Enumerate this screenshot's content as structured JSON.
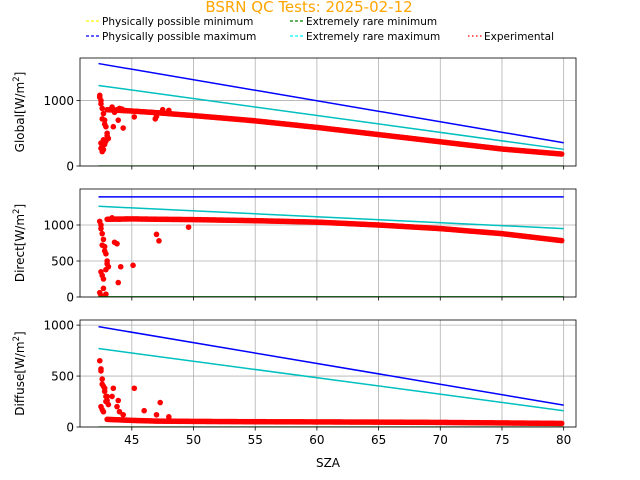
{
  "chart_data": {
    "type": "line",
    "title": "BSRN QC Tests: 2025-02-12",
    "title_color": "#ffa500",
    "xlabel": "SZA",
    "xlim": [
      40.8,
      81.0
    ],
    "xticks": [
      45,
      50,
      55,
      60,
      65,
      70,
      75,
      80
    ],
    "grid": true,
    "legend": {
      "placement": "top",
      "entries": [
        {
          "label": "Physically possible minimum",
          "color": "#ffff00",
          "style": "dashed"
        },
        {
          "label": "Physically possible maximum",
          "color": "#0000ff",
          "style": "dashed"
        },
        {
          "label": "Extremely rare minimum",
          "color": "#008000",
          "style": "dashed"
        },
        {
          "label": "Extremely rare maximum",
          "color": "#00ffff",
          "style": "dashed"
        },
        {
          "label": "Experimental",
          "color": "#ff0000",
          "style": "dotted"
        }
      ]
    },
    "panels": [
      {
        "ylabel_base": "Global",
        "ylabel_unit": "[W/m",
        "ylabel_sup": "2",
        "ylabel_close": "]",
        "ylim": [
          0,
          1650
        ],
        "yticks": [
          0,
          1000
        ],
        "series": [
          {
            "name": "Physically possible minimum",
            "color": "#ffff00",
            "x": [
              42.3,
              80
            ],
            "y": [
              -4,
              -4
            ]
          },
          {
            "name": "Extremely rare minimum",
            "color": "#008000",
            "x": [
              42.3,
              80
            ],
            "y": [
              -2,
              -2
            ]
          },
          {
            "name": "Physically possible maximum",
            "color": "#0000ff",
            "x": [
              42.3,
              80
            ],
            "y": [
              1565,
              355
            ]
          },
          {
            "name": "Extremely rare maximum",
            "color": "#00bfbf",
            "x": [
              42.3,
              80
            ],
            "y": [
              1230,
              255
            ]
          }
        ],
        "experimental": {
          "curve_x": [
            43,
            45,
            47,
            50,
            55,
            60,
            65,
            70,
            75,
            80
          ],
          "curve_y": [
            860,
            840,
            815,
            770,
            690,
            590,
            480,
            370,
            260,
            180
          ],
          "scatter_x": [
            42.4,
            42.5,
            42.6,
            42.7,
            42.8,
            42.9,
            43.0,
            43.1,
            42.5,
            42.6,
            42.7,
            42.9,
            43.0,
            42.8,
            42.6,
            42.5,
            43.4,
            43.6,
            43.8,
            44.0,
            44.2,
            44.4,
            43.5,
            43.9,
            44.3,
            45.2,
            46.9,
            47.0,
            47.5,
            48.0,
            42.4,
            42.5,
            42.6,
            42.7,
            42.8
          ],
          "scatter_y": [
            1050,
            950,
            880,
            800,
            700,
            600,
            500,
            420,
            350,
            300,
            250,
            380,
            460,
            640,
            720,
            1000,
            900,
            820,
            860,
            880,
            870,
            850,
            600,
            700,
            580,
            750,
            720,
            760,
            860,
            850,
            1080,
            270,
            220,
            400,
            330
          ]
        }
      },
      {
        "ylabel_base": "Direct",
        "ylabel_unit": "[W/m",
        "ylabel_sup": "2",
        "ylabel_close": "]",
        "ylim": [
          0,
          1500
        ],
        "yticks": [
          0,
          500,
          1000
        ],
        "series": [
          {
            "name": "Physically possible minimum",
            "color": "#ffff00",
            "x": [
              42.3,
              80
            ],
            "y": [
              -4,
              -4
            ]
          },
          {
            "name": "Extremely rare minimum",
            "color": "#008000",
            "x": [
              42.3,
              80
            ],
            "y": [
              2,
              2
            ]
          },
          {
            "name": "Physically possible maximum",
            "color": "#0000ff",
            "x": [
              42.3,
              80
            ],
            "y": [
              1390,
              1390
            ]
          },
          {
            "name": "Extremely rare maximum",
            "color": "#00bfbf",
            "x": [
              42.3,
              80
            ],
            "y": [
              1260,
              950
            ]
          }
        ],
        "experimental": {
          "curve_x": [
            43,
            45,
            47,
            50,
            55,
            60,
            65,
            70,
            75,
            80
          ],
          "curve_y": [
            1080,
            1085,
            1080,
            1075,
            1060,
            1040,
            1000,
            950,
            880,
            780
          ],
          "scatter_x": [
            42.4,
            42.5,
            42.6,
            42.7,
            42.8,
            42.9,
            43.0,
            43.1,
            42.5,
            42.6,
            42.7,
            42.9,
            43.0,
            42.8,
            42.6,
            42.5,
            43.6,
            43.8,
            44.1,
            43.9,
            45.1,
            47.0,
            47.2,
            49.6,
            43.4,
            44.0,
            42.4,
            42.5,
            42.7,
            42.9
          ],
          "scatter_y": [
            1050,
            950,
            880,
            800,
            700,
            600,
            500,
            420,
            350,
            300,
            250,
            380,
            460,
            640,
            720,
            1000,
            760,
            740,
            420,
            200,
            440,
            870,
            780,
            970,
            1100,
            1080,
            60,
            20,
            120,
            40
          ]
        }
      },
      {
        "ylabel_base": "Diffuse",
        "ylabel_unit": "[W/m",
        "ylabel_sup": "2",
        "ylabel_close": "]",
        "ylim": [
          0,
          1050
        ],
        "yticks": [
          0,
          500,
          1000
        ],
        "series": [
          {
            "name": "Physically possible minimum",
            "color": "#ffff00",
            "x": [
              42.3,
              80
            ],
            "y": [
              -3,
              -3
            ]
          },
          {
            "name": "Extremely rare minimum",
            "color": "#008000",
            "x": [
              42.3,
              80
            ],
            "y": [
              -1,
              -1
            ]
          },
          {
            "name": "Physically possible maximum",
            "color": "#0000ff",
            "x": [
              42.3,
              80
            ],
            "y": [
              985,
              215
            ]
          },
          {
            "name": "Extremely rare maximum",
            "color": "#00bfbf",
            "x": [
              42.3,
              80
            ],
            "y": [
              770,
              160
            ]
          }
        ],
        "experimental": {
          "curve_x": [
            43,
            45,
            47,
            50,
            55,
            60,
            65,
            70,
            75,
            80
          ],
          "curve_y": [
            75,
            65,
            58,
            55,
            52,
            50,
            48,
            45,
            40,
            35
          ],
          "scatter_x": [
            42.4,
            42.5,
            42.6,
            42.7,
            42.8,
            42.9,
            43.0,
            43.1,
            42.5,
            42.6,
            42.7,
            42.9,
            43.0,
            42.8,
            42.6,
            42.5,
            43.5,
            43.8,
            44.0,
            44.3,
            45.2,
            46.0,
            47.3,
            47.0,
            48.0,
            43.4,
            43.9
          ],
          "scatter_y": [
            650,
            570,
            470,
            400,
            350,
            300,
            260,
            220,
            200,
            170,
            150,
            250,
            300,
            380,
            420,
            550,
            380,
            200,
            150,
            120,
            380,
            160,
            240,
            120,
            100,
            300,
            260
          ]
        }
      }
    ]
  }
}
